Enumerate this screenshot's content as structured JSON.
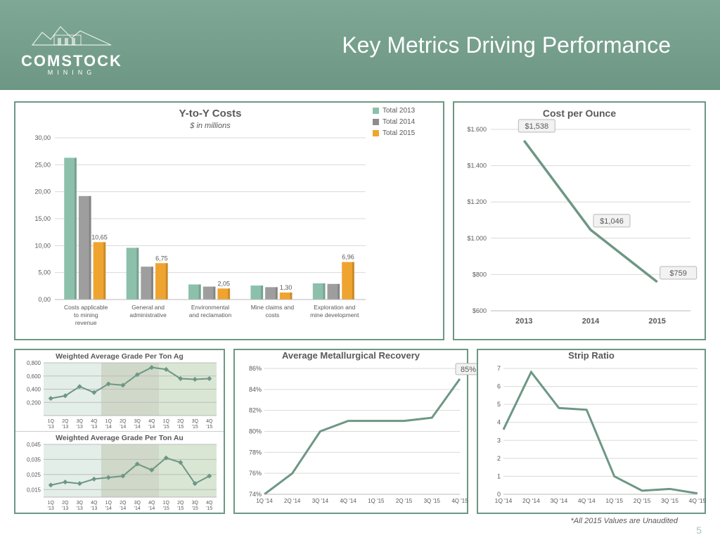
{
  "header": {
    "company": "COMSTOCK",
    "company_sub": "MINING",
    "title": "Key Metrics Driving Performance"
  },
  "yty": {
    "title": "Y-to-Y Costs",
    "subtitle": "$ in millions",
    "legend": [
      "Total 2013",
      "Total 2014",
      "Total 2015"
    ],
    "legend_markers": [
      "#8cc0ab",
      "#8c8c8c",
      "#f0a430"
    ],
    "categories": [
      "Costs applicable to mining revenue",
      "General and administrative",
      "Environmental and reclamation",
      "Mine claims and costs",
      "Exploration and mine development"
    ],
    "series": [
      [
        26.3,
        9.6,
        2.8,
        2.6,
        3.0
      ],
      [
        19.2,
        6.1,
        2.4,
        2.3,
        2.9
      ],
      [
        10.65,
        6.75,
        2.05,
        1.3,
        6.96
      ]
    ],
    "value_labels_2015": [
      "10,65",
      "6,75",
      "2,05",
      "1,30",
      "6,96"
    ],
    "bar_colors": [
      "#8cc0ab",
      "#9e9e9e",
      "#f0a430"
    ],
    "ylim": [
      0,
      30
    ],
    "ytick_step": 5,
    "ytick_labels": [
      "0,00",
      "5,00",
      "10,00",
      "15,00",
      "20,00",
      "25,00",
      "30,00"
    ],
    "grid_color": "#d9d9d9",
    "plot_bg": "#ffffff"
  },
  "cpo": {
    "title": "Cost per Ounce",
    "x_labels": [
      "2013",
      "2014",
      "2015"
    ],
    "values": [
      1538,
      1046,
      759
    ],
    "callouts": [
      "$1,538",
      "$1,046",
      "$759"
    ],
    "ylim": [
      600,
      1600
    ],
    "ytick_step": 200,
    "ytick_labels": [
      "$600",
      "$800",
      "$1.000",
      "$1.200",
      "$1.400",
      "$1.600"
    ],
    "line_color": "#6d9784",
    "grid_color": "#d9d9d9"
  },
  "grade_ag": {
    "title": "Weighted Average Grade Per Ton Ag",
    "x_labels": [
      "1Q '13",
      "2Q '13",
      "3Q '13",
      "4Q '13",
      "1Q '14",
      "2Q '14",
      "3Q '14",
      "4Q '14",
      "1Q '15",
      "2Q '15",
      "3Q '15",
      "4Q '15"
    ],
    "values": [
      0.26,
      0.3,
      0.44,
      0.35,
      0.48,
      0.46,
      0.62,
      0.73,
      0.7,
      0.56,
      0.55,
      0.56
    ],
    "ylim": [
      0,
      0.8
    ],
    "yticks": [
      0.2,
      0.4,
      0.6,
      0.8
    ],
    "ytick_labels": [
      "0,200",
      "0,400",
      "0,600",
      "0,800"
    ],
    "line_color": "#6d9784",
    "band_colors": [
      "#e4eee8",
      "#cfd8c9",
      "#d9e6d3"
    ],
    "bg": "#f2f2ea"
  },
  "grade_au": {
    "title": "Weighted Average Grade Per Ton Au",
    "x_labels": [
      "1Q '13",
      "2Q '13",
      "3Q '13",
      "4Q '13",
      "1Q '14",
      "2Q '14",
      "3Q '14",
      "4Q '14",
      "1Q '15",
      "2Q '15",
      "3Q '15",
      "4Q '15"
    ],
    "values": [
      0.018,
      0.02,
      0.019,
      0.022,
      0.023,
      0.024,
      0.032,
      0.028,
      0.036,
      0.033,
      0.019,
      0.024
    ],
    "ylim": [
      0.01,
      0.045
    ],
    "yticks": [
      0.015,
      0.025,
      0.035,
      0.045
    ],
    "ytick_labels": [
      "0,015",
      "0,025",
      "0,035",
      "0,045"
    ],
    "line_color": "#6d9784",
    "band_colors": [
      "#e4eee8",
      "#cfd8c9",
      "#d9e6d3"
    ],
    "bg": "#f2f2ea"
  },
  "amr": {
    "title": "Average Metallurgical Recovery",
    "x_labels": [
      "1Q '14",
      "2Q '14",
      "3Q '14",
      "4Q '14",
      "1Q '15",
      "2Q '15",
      "3Q '15",
      "4Q '15"
    ],
    "values": [
      74,
      76,
      80,
      81,
      81,
      81,
      81.3,
      85
    ],
    "callout": "85%",
    "ylim": [
      74,
      86
    ],
    "ytick_step": 2,
    "ytick_labels": [
      "74%",
      "76%",
      "78%",
      "80%",
      "82%",
      "84%",
      "86%"
    ],
    "line_color": "#6d9784",
    "grid_color": "#d9d9d9"
  },
  "strip": {
    "title": "Strip Ratio",
    "x_labels": [
      "1Q '14",
      "2Q '14",
      "3Q '14",
      "4Q '14",
      "1Q '15",
      "2Q '15",
      "3Q '15",
      "4Q '15"
    ],
    "values": [
      3.6,
      6.8,
      4.8,
      4.7,
      1.0,
      0.2,
      0.3,
      0.05
    ],
    "ylim": [
      0,
      7
    ],
    "ytick_step": 1,
    "ytick_labels": [
      "0",
      "1",
      "2",
      "3",
      "4",
      "5",
      "6",
      "7"
    ],
    "line_color": "#6d9784",
    "grid_color": "#d9d9d9"
  },
  "footer": "*All 2015 Values are Unaudited",
  "page": "5"
}
